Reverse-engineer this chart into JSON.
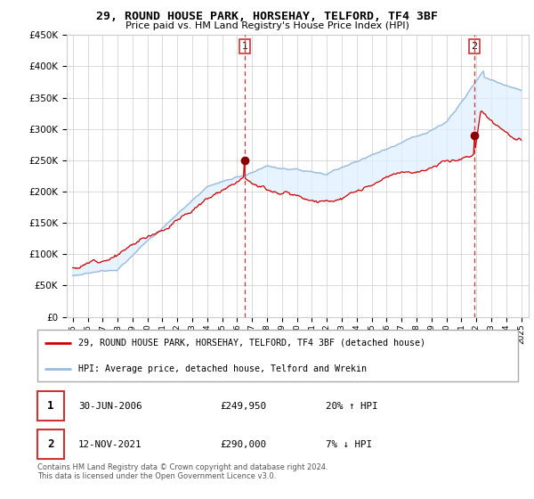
{
  "title": "29, ROUND HOUSE PARK, HORSEHAY, TELFORD, TF4 3BF",
  "subtitle": "Price paid vs. HM Land Registry's House Price Index (HPI)",
  "legend_line1": "29, ROUND HOUSE PARK, HORSEHAY, TELFORD, TF4 3BF (detached house)",
  "legend_line2": "HPI: Average price, detached house, Telford and Wrekin",
  "annotation1_date": "30-JUN-2006",
  "annotation1_price": "£249,950",
  "annotation1_hpi": "20% ↑ HPI",
  "annotation2_date": "12-NOV-2021",
  "annotation2_price": "£290,000",
  "annotation2_hpi": "7% ↓ HPI",
  "footnote": "Contains HM Land Registry data © Crown copyright and database right 2024.\nThis data is licensed under the Open Government Licence v3.0.",
  "ylim": [
    0,
    450000
  ],
  "yticks": [
    0,
    50000,
    100000,
    150000,
    200000,
    250000,
    300000,
    350000,
    400000,
    450000
  ],
  "vline1_year": 2006.5,
  "vline2_year": 2021.87,
  "sale1_year": 2006.5,
  "sale1_price": 249950,
  "sale2_year": 2021.87,
  "sale2_price": 290000,
  "red_color": "#cc0000",
  "blue_color": "#99bbdd",
  "fill_color": "#ddeeff",
  "background_color": "#ffffff",
  "grid_color": "#cccccc"
}
